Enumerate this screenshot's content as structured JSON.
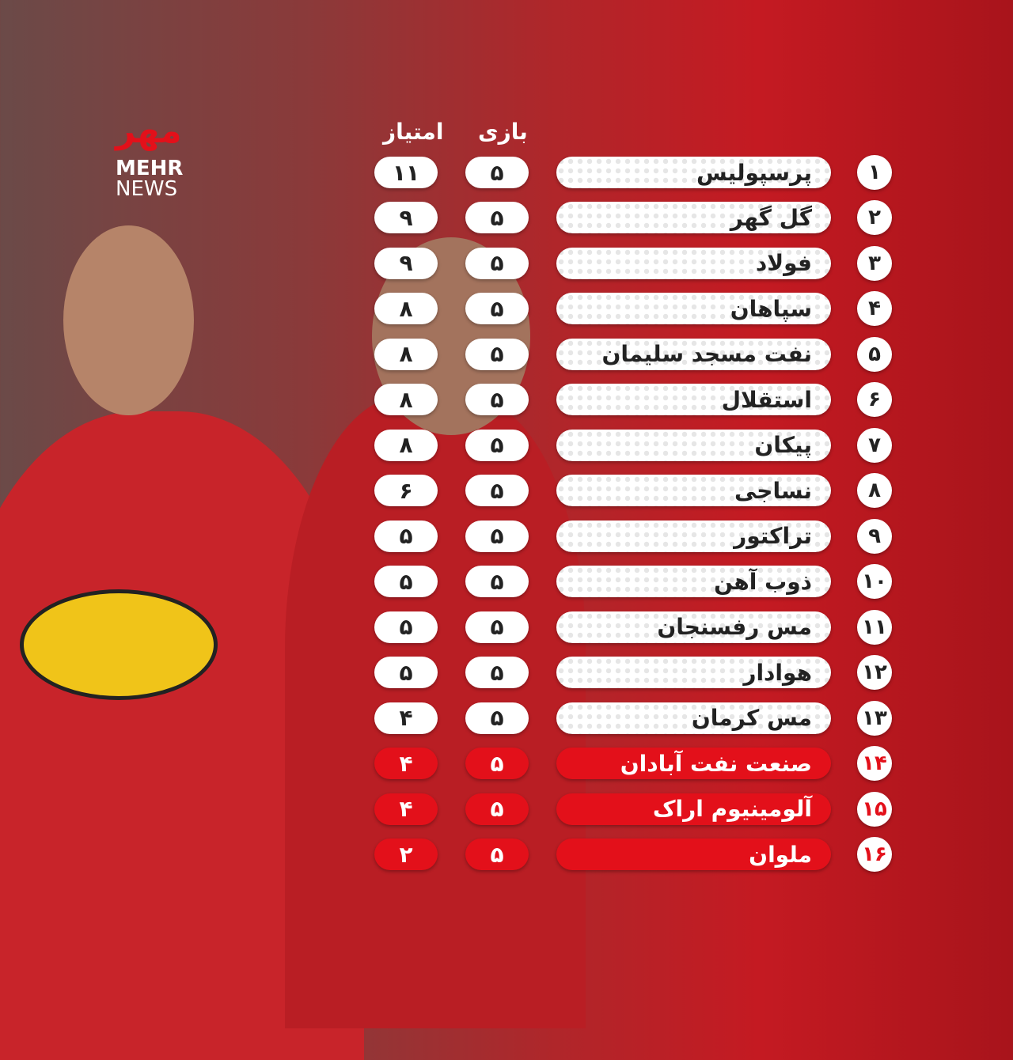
{
  "logo": {
    "mark": "مهر",
    "line1": "MEHR",
    "line2": "NEWS"
  },
  "table": {
    "headers": {
      "games": "بازی",
      "points": "امتیاز"
    },
    "highlight_color": "#e3101a",
    "rows": [
      {
        "rank": "۱",
        "team": "پرسپولیس",
        "games": "۵",
        "points": "۱۱",
        "highlight": false
      },
      {
        "rank": "۲",
        "team": "گل گهر",
        "games": "۵",
        "points": "۹",
        "highlight": false
      },
      {
        "rank": "۳",
        "team": "فولاد",
        "games": "۵",
        "points": "۹",
        "highlight": false
      },
      {
        "rank": "۴",
        "team": "سپاهان",
        "games": "۵",
        "points": "۸",
        "highlight": false
      },
      {
        "rank": "۵",
        "team": "نفت مسجد سلیمان",
        "games": "۵",
        "points": "۸",
        "highlight": false
      },
      {
        "rank": "۶",
        "team": "استقلال",
        "games": "۵",
        "points": "۸",
        "highlight": false
      },
      {
        "rank": "۷",
        "team": "پیکان",
        "games": "۵",
        "points": "۸",
        "highlight": false
      },
      {
        "rank": "۸",
        "team": "نساجی",
        "games": "۵",
        "points": "۶",
        "highlight": false
      },
      {
        "rank": "۹",
        "team": "تراکتور",
        "games": "۵",
        "points": "۵",
        "highlight": false
      },
      {
        "rank": "۱۰",
        "team": "ذوب آهن",
        "games": "۵",
        "points": "۵",
        "highlight": false
      },
      {
        "rank": "۱۱",
        "team": "مس رفسنجان",
        "games": "۵",
        "points": "۵",
        "highlight": false
      },
      {
        "rank": "۱۲",
        "team": "هوادار",
        "games": "۵",
        "points": "۵",
        "highlight": false
      },
      {
        "rank": "۱۳",
        "team": "مس کرمان",
        "games": "۵",
        "points": "۴",
        "highlight": false
      },
      {
        "rank": "۱۴",
        "team": "صنعت نفت آبادان",
        "games": "۵",
        "points": "۴",
        "highlight": true
      },
      {
        "rank": "۱۵",
        "team": "آلومینیوم اراک",
        "games": "۵",
        "points": "۴",
        "highlight": true
      },
      {
        "rank": "۱۶",
        "team": "ملوان",
        "games": "۵",
        "points": "۲",
        "highlight": true
      }
    ]
  }
}
